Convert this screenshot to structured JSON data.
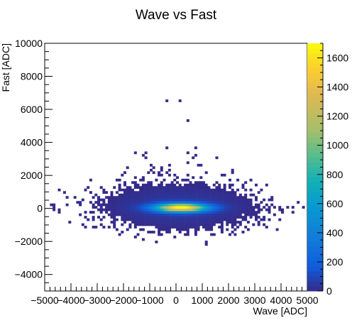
{
  "chart_data": {
    "type": "heatmap",
    "title": "Wave vs Fast",
    "xlabel": "Wave [ADC]",
    "ylabel": "Fast [ADC]",
    "xlim": [
      -5000,
      5000
    ],
    "ylim": [
      -5000,
      10000
    ],
    "x_ticks": [
      -5000,
      -4000,
      -3000,
      -2000,
      -1000,
      0,
      1000,
      2000,
      3000,
      4000,
      5000
    ],
    "x_tick_labels": [
      "−5000",
      "−4000",
      "−3000",
      "−2000",
      "−1000",
      "0",
      "1000",
      "2000",
      "3000",
      "4000",
      "5000"
    ],
    "y_ticks": [
      -4000,
      -2000,
      0,
      2000,
      4000,
      6000,
      8000,
      10000
    ],
    "y_tick_labels": [
      "−4000",
      "−2000",
      "0",
      "2000",
      "4000",
      "6000",
      "8000",
      "10000"
    ],
    "colorbar": {
      "zlim": [
        0,
        1700
      ],
      "ticks": [
        0,
        200,
        400,
        600,
        800,
        1000,
        1200,
        1400,
        1600
      ],
      "tick_labels": [
        "0",
        "200",
        "400",
        "600",
        "800",
        "1000",
        "1200",
        "1400",
        "1600"
      ]
    },
    "distribution": {
      "peak_count": 1700,
      "core": {
        "x_center": 200,
        "y_center": 50,
        "x_sigma": 650,
        "y_sigma": 170
      },
      "halo": {
        "x_center": 100,
        "y_center": 100,
        "x_sigma": 1400,
        "y_sigma": 650
      },
      "upper_tail": {
        "y_max": 7000,
        "x_spread_at_zero": 3000,
        "x_spread_at_top": 500
      },
      "horizontal_band": {
        "x_min": -4800,
        "x_max": 5000,
        "y_center": 0,
        "y_halfwidth": 300
      }
    }
  }
}
